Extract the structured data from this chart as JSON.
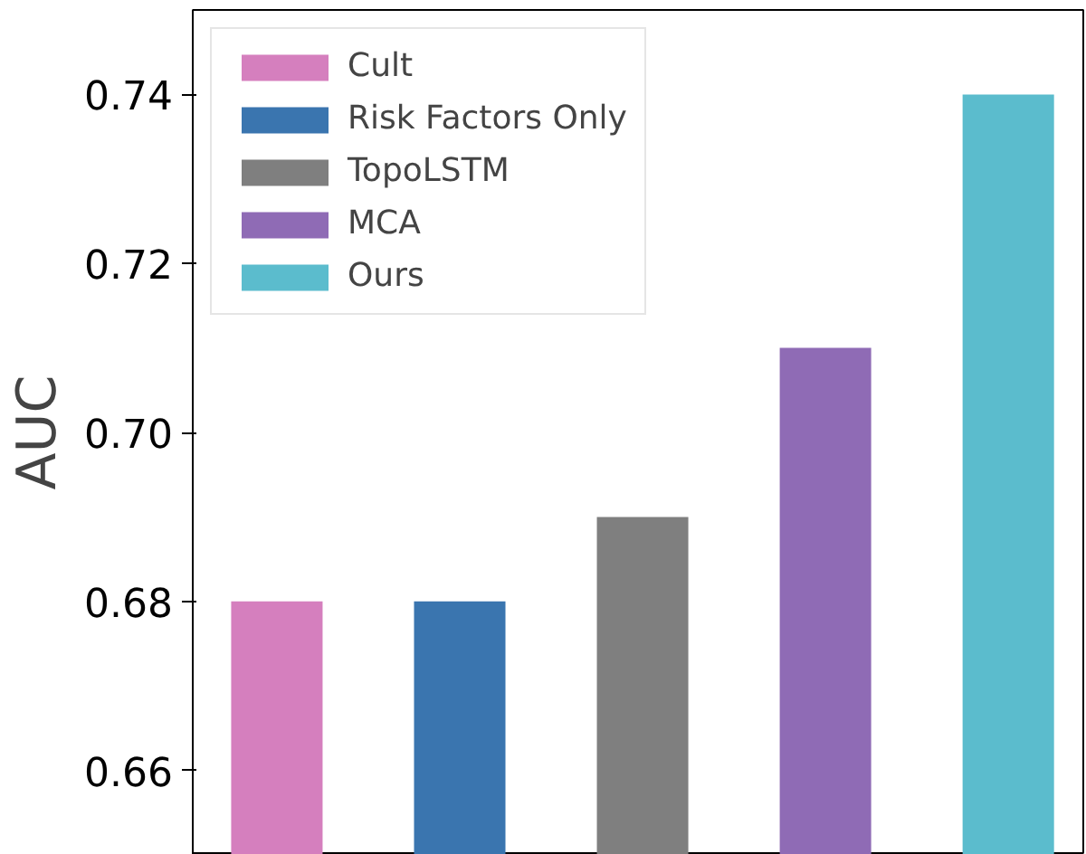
{
  "chart_data": {
    "type": "bar",
    "ylabel": "AUC",
    "categories": [
      null,
      null,
      null,
      null,
      null
    ],
    "stacked": true,
    "series": [
      {
        "name": "Cult",
        "color": "#d57fbe",
        "values": [
          0.68,
          null,
          null,
          null,
          null
        ]
      },
      {
        "name": "Risk Factors Only",
        "color": "#3a75af",
        "values": [
          null,
          0.68,
          null,
          null,
          null
        ]
      },
      {
        "name": "TopoLSTM",
        "color": "#7f7f7f",
        "values": [
          null,
          null,
          0.69,
          null,
          null
        ]
      },
      {
        "name": "MCA",
        "color": "#8f6bb5",
        "values": [
          null,
          null,
          null,
          0.71,
          null
        ]
      },
      {
        "name": "Ours",
        "color": "#5bbccd",
        "values": [
          null,
          null,
          null,
          null,
          0.74
        ]
      }
    ],
    "ylim": [
      0.65,
      0.75
    ],
    "yticks": [
      {
        "value": 0.66,
        "label": "0.66"
      },
      {
        "value": 0.68,
        "label": "0.68"
      },
      {
        "value": 0.7,
        "label": "0.70"
      },
      {
        "value": 0.72,
        "label": "0.72"
      },
      {
        "value": 0.74,
        "label": "0.74"
      }
    ],
    "legend": "top left",
    "grid": false,
    "tick_labels": "y"
  }
}
